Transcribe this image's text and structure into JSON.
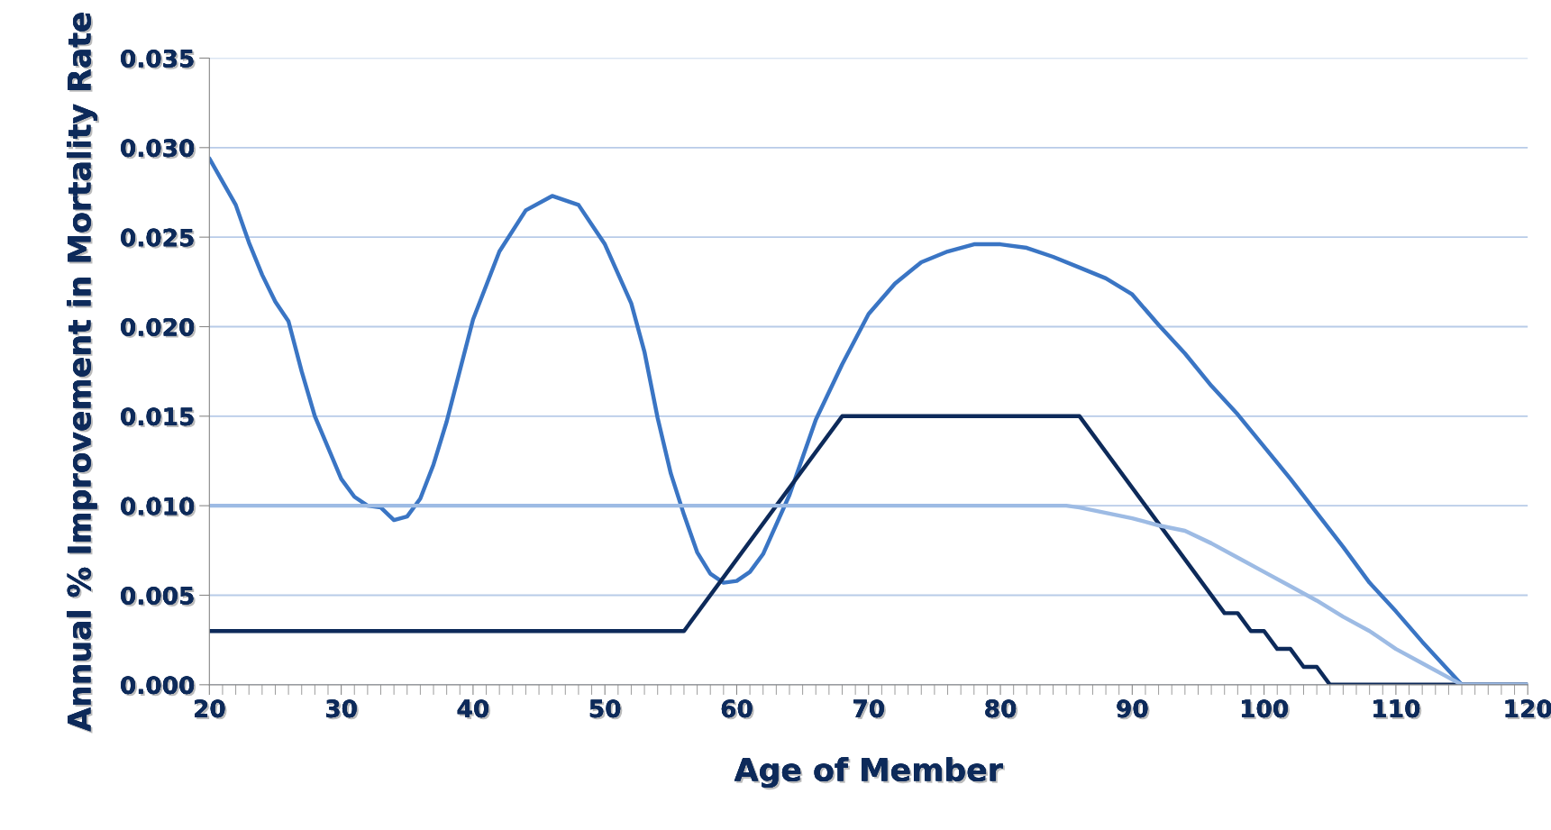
{
  "chart_data": {
    "type": "line",
    "xlabel": "Age of Member",
    "ylabel": "Annual % Improvement in Mortality Rate",
    "xlim": [
      20,
      120
    ],
    "xticks": [
      20,
      30,
      40,
      50,
      60,
      70,
      80,
      90,
      100,
      110,
      120
    ],
    "ylim": [
      0,
      0.035
    ],
    "yticks": [
      {
        "value": 0,
        "label": "0.000"
      },
      {
        "value": 0.005,
        "label": "0.005"
      },
      {
        "value": 0.01,
        "label": "0.010"
      },
      {
        "value": 0.015,
        "label": "0.015"
      },
      {
        "value": 0.02,
        "label": "0.020"
      },
      {
        "value": 0.025,
        "label": "0.025"
      },
      {
        "value": 0.03,
        "label": "0.030"
      },
      {
        "value": 0.035,
        "label": "0.035"
      }
    ],
    "grid": "y",
    "legend": false,
    "marker": "none",
    "line_style": "solid",
    "series": [
      {
        "color": "#3a75c4",
        "x": [
          20,
          21,
          22,
          23,
          24,
          25,
          26,
          27,
          28,
          30,
          31,
          32,
          33,
          34,
          35,
          36,
          37,
          38,
          40,
          42,
          44,
          46,
          48,
          50,
          52,
          53,
          54,
          55,
          56,
          57,
          58,
          59,
          60,
          61,
          62,
          64,
          66,
          68,
          70,
          72,
          74,
          76,
          78,
          80,
          82,
          84,
          86,
          88,
          90,
          92,
          94,
          96,
          98,
          100,
          102,
          104,
          106,
          108,
          110,
          112,
          114,
          115,
          120
        ],
        "values": [
          0.0294,
          0.0281,
          0.0268,
          0.0247,
          0.0229,
          0.0214,
          0.0203,
          0.0175,
          0.015,
          0.0115,
          0.0105,
          0.01,
          0.0099,
          0.0092,
          0.0094,
          0.0104,
          0.0123,
          0.0147,
          0.0204,
          0.0242,
          0.0265,
          0.0273,
          0.0268,
          0.0246,
          0.0213,
          0.0186,
          0.0149,
          0.0118,
          0.0095,
          0.0074,
          0.0062,
          0.0057,
          0.0058,
          0.0063,
          0.0073,
          0.0106,
          0.0148,
          0.0179,
          0.0207,
          0.0224,
          0.0236,
          0.0242,
          0.0246,
          0.0246,
          0.0244,
          0.0239,
          0.0233,
          0.0227,
          0.0218,
          0.0201,
          0.0185,
          0.0167,
          0.0151,
          0.0133,
          0.0115,
          0.0096,
          0.0077,
          0.0057,
          0.0041,
          0.0024,
          0.0008,
          0,
          0
        ]
      },
      {
        "color": "#0d2a5a",
        "x": [
          20,
          56,
          68,
          86,
          97,
          98,
          99,
          100,
          101,
          102,
          103,
          104,
          105,
          120
        ],
        "values": [
          0.003,
          0.003,
          0.015,
          0.015,
          0.004,
          0.004,
          0.003,
          0.003,
          0.002,
          0.002,
          0.001,
          0.001,
          0,
          0
        ]
      },
      {
        "color": "#9dbbe4",
        "x": [
          20,
          85,
          86,
          88,
          90,
          92,
          94,
          96,
          98,
          100,
          102,
          104,
          106,
          108,
          110,
          112,
          114,
          115,
          120
        ],
        "values": [
          0.01,
          0.01,
          0.0099,
          0.0096,
          0.0093,
          0.0089,
          0.0086,
          0.0079,
          0.0071,
          0.0063,
          0.0055,
          0.0047,
          0.0038,
          0.003,
          0.002,
          0.0012,
          0.0004,
          0,
          0
        ]
      }
    ]
  }
}
